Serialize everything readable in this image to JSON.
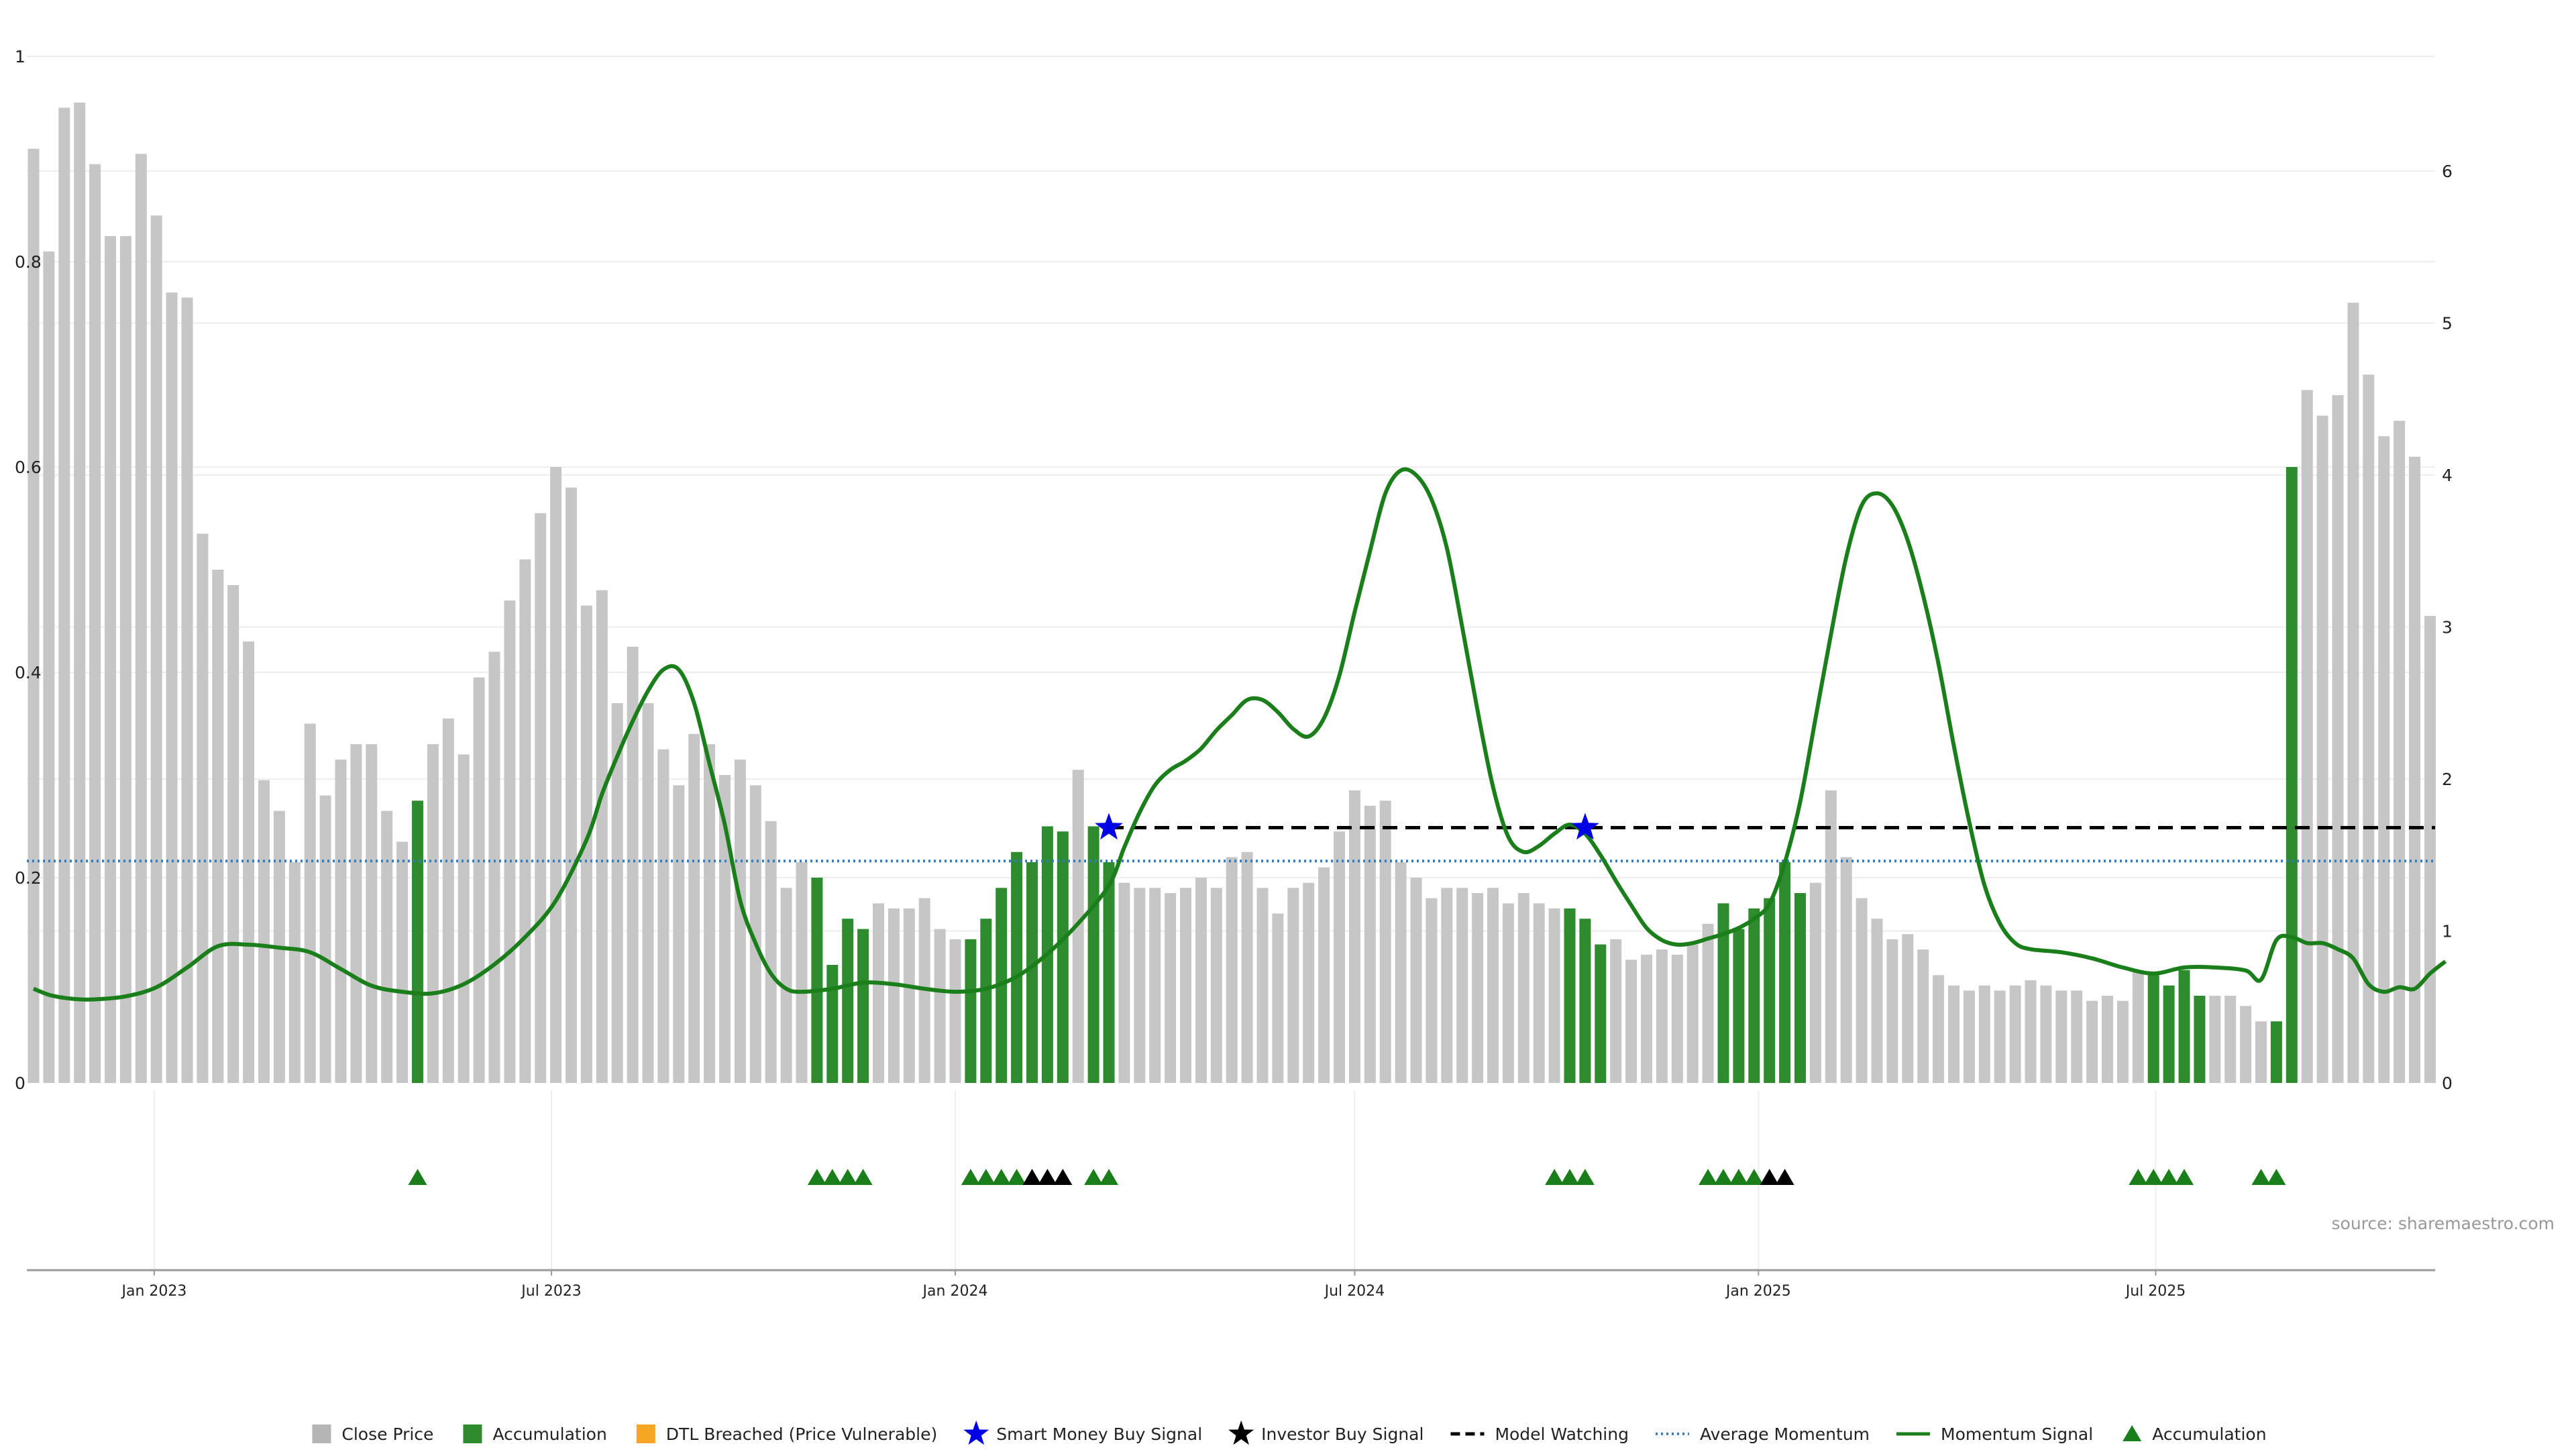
{
  "chart_data": {
    "type": "bar",
    "title": "",
    "source": "source: sharemaestro.com",
    "left_axis": {
      "ticks": [
        "0",
        "0.2",
        "0.4",
        "0.6",
        "0.8",
        "1"
      ],
      "ylim": [
        0,
        1.05
      ]
    },
    "right_axis": {
      "ticks": [
        "0",
        "1",
        "2",
        "3",
        "4",
        "5",
        "6"
      ],
      "ylim": [
        0,
        7.1
      ]
    },
    "x_axis": {
      "start": "2022-11-07",
      "interval": "weekly",
      "ticks": [
        "Jan 2023",
        "Jul 2023",
        "Jan 2024",
        "Jul 2024",
        "Jan 2025",
        "Jul 2025"
      ]
    },
    "bars": {
      "values": [
        0.91,
        0.81,
        0.95,
        0.955,
        0.895,
        0.825,
        0.825,
        0.905,
        0.845,
        0.77,
        0.765,
        0.535,
        0.5,
        0.485,
        0.43,
        0.295,
        0.265,
        0.215,
        0.35,
        0.28,
        0.315,
        0.33,
        0.33,
        0.265,
        0.235,
        0.275,
        0.33,
        0.355,
        0.32,
        0.395,
        0.42,
        0.47,
        0.51,
        0.555,
        0.6,
        0.58,
        0.465,
        0.48,
        0.37,
        0.425,
        0.37,
        0.325,
        0.29,
        0.34,
        0.33,
        0.3,
        0.315,
        0.29,
        0.255,
        0.19,
        0.215,
        0.2,
        0.115,
        0.16,
        0.15,
        0.175,
        0.17,
        0.17,
        0.18,
        0.15,
        0.14,
        0.14,
        0.16,
        0.19,
        0.225,
        0.215,
        0.25,
        0.245,
        0.305,
        0.25,
        0.215,
        0.195,
        0.19,
        0.19,
        0.185,
        0.19,
        0.2,
        0.19,
        0.22,
        0.225,
        0.19,
        0.165,
        0.19,
        0.195,
        0.21,
        0.245,
        0.285,
        0.27,
        0.275,
        0.215,
        0.2,
        0.18,
        0.19,
        0.19,
        0.185,
        0.19,
        0.175,
        0.185,
        0.175,
        0.17,
        0.17,
        0.16,
        0.135,
        0.14,
        0.12,
        0.125,
        0.13,
        0.125,
        0.135,
        0.155,
        0.175,
        0.15,
        0.17,
        0.18,
        0.215,
        0.185,
        0.195,
        0.285,
        0.22,
        0.18,
        0.16,
        0.14,
        0.145,
        0.13,
        0.105,
        0.095,
        0.09,
        0.095,
        0.09,
        0.095,
        0.1,
        0.095,
        0.09,
        0.09,
        0.08,
        0.085,
        0.08,
        0.11,
        0.105,
        0.095,
        0.11,
        0.085,
        0.085,
        0.085,
        0.075,
        0.06,
        0.06,
        0.6,
        0.675,
        0.65,
        0.67,
        0.76,
        0.69,
        0.63,
        0.645,
        0.61,
        0.455
      ],
      "accumulation_indices": [
        25,
        51,
        52,
        53,
        54,
        61,
        62,
        63,
        64,
        65,
        66,
        67,
        69,
        70,
        100,
        101,
        102,
        110,
        111,
        112,
        113,
        114,
        115,
        138,
        139,
        140,
        141,
        146,
        147
      ],
      "series": [
        {
          "name": "Close Price",
          "color": "#c6c6c6"
        },
        {
          "name": "Accumulation",
          "color": "#2e8b2e"
        }
      ]
    },
    "momentum_signal": {
      "name": "Momentum Signal",
      "axis": "right",
      "color": "#1a7f1a",
      "points": [
        [
          0,
          0.62
        ],
        [
          1,
          0.58
        ],
        [
          2,
          0.56
        ],
        [
          3,
          0.55
        ],
        [
          4,
          0.55
        ],
        [
          6,
          0.57
        ],
        [
          8,
          0.63
        ],
        [
          10,
          0.76
        ],
        [
          12,
          0.9
        ],
        [
          14,
          0.91
        ],
        [
          16,
          0.89
        ],
        [
          18,
          0.86
        ],
        [
          20,
          0.75
        ],
        [
          22,
          0.64
        ],
        [
          24,
          0.6
        ],
        [
          26,
          0.59
        ],
        [
          28,
          0.65
        ],
        [
          30,
          0.78
        ],
        [
          32,
          0.96
        ],
        [
          34,
          1.2
        ],
        [
          36,
          1.6
        ],
        [
          37,
          1.9
        ],
        [
          38,
          2.15
        ],
        [
          39,
          2.38
        ],
        [
          40,
          2.58
        ],
        [
          41,
          2.72
        ],
        [
          42,
          2.72
        ],
        [
          43,
          2.5
        ],
        [
          44,
          2.1
        ],
        [
          45,
          1.7
        ],
        [
          46,
          1.2
        ],
        [
          47,
          0.92
        ],
        [
          48,
          0.72
        ],
        [
          49,
          0.62
        ],
        [
          50,
          0.6
        ],
        [
          52,
          0.62
        ],
        [
          54,
          0.66
        ],
        [
          56,
          0.65
        ],
        [
          58,
          0.62
        ],
        [
          60,
          0.6
        ],
        [
          62,
          0.62
        ],
        [
          64,
          0.7
        ],
        [
          66,
          0.85
        ],
        [
          68,
          1.05
        ],
        [
          70,
          1.3
        ],
        [
          71,
          1.55
        ],
        [
          72,
          1.78
        ],
        [
          73,
          1.96
        ],
        [
          74,
          2.06
        ],
        [
          75,
          2.12
        ],
        [
          76,
          2.2
        ],
        [
          77,
          2.32
        ],
        [
          78,
          2.42
        ],
        [
          79,
          2.52
        ],
        [
          80,
          2.52
        ],
        [
          81,
          2.44
        ],
        [
          82,
          2.33
        ],
        [
          83,
          2.28
        ],
        [
          84,
          2.4
        ],
        [
          85,
          2.68
        ],
        [
          86,
          3.1
        ],
        [
          87,
          3.5
        ],
        [
          88,
          3.88
        ],
        [
          89,
          4.03
        ],
        [
          90,
          4.0
        ],
        [
          91,
          3.84
        ],
        [
          92,
          3.52
        ],
        [
          93,
          3.0
        ],
        [
          94,
          2.45
        ],
        [
          95,
          1.95
        ],
        [
          96,
          1.62
        ],
        [
          97,
          1.52
        ],
        [
          98,
          1.56
        ],
        [
          99,
          1.64
        ],
        [
          100,
          1.7
        ],
        [
          101,
          1.64
        ],
        [
          102,
          1.5
        ],
        [
          103,
          1.33
        ],
        [
          104,
          1.17
        ],
        [
          105,
          1.02
        ],
        [
          106,
          0.94
        ],
        [
          107,
          0.91
        ],
        [
          108,
          0.92
        ],
        [
          109,
          0.95
        ],
        [
          110,
          0.98
        ],
        [
          111,
          1.02
        ],
        [
          112,
          1.08
        ],
        [
          113,
          1.18
        ],
        [
          114,
          1.45
        ],
        [
          115,
          1.85
        ],
        [
          116,
          2.4
        ],
        [
          117,
          2.95
        ],
        [
          118,
          3.46
        ],
        [
          119,
          3.8
        ],
        [
          120,
          3.88
        ],
        [
          121,
          3.8
        ],
        [
          122,
          3.57
        ],
        [
          123,
          3.21
        ],
        [
          124,
          2.76
        ],
        [
          125,
          2.22
        ],
        [
          126,
          1.72
        ],
        [
          127,
          1.3
        ],
        [
          128,
          1.05
        ],
        [
          129,
          0.92
        ],
        [
          130,
          0.88
        ],
        [
          132,
          0.86
        ],
        [
          134,
          0.82
        ],
        [
          136,
          0.76
        ],
        [
          138,
          0.72
        ],
        [
          140,
          0.76
        ],
        [
          142,
          0.76
        ],
        [
          144,
          0.74
        ],
        [
          145,
          0.68
        ],
        [
          146,
          0.94
        ],
        [
          147,
          0.96
        ],
        [
          148,
          0.92
        ],
        [
          149,
          0.92
        ],
        [
          150,
          0.88
        ],
        [
          151,
          0.82
        ],
        [
          152,
          0.65
        ],
        [
          153,
          0.6
        ],
        [
          154,
          0.63
        ],
        [
          155,
          0.62
        ],
        [
          156,
          0.72
        ],
        [
          157,
          0.8
        ]
      ]
    },
    "average_momentum": {
      "name": "Average Momentum",
      "axis": "right",
      "value": 1.46,
      "color": "#3a7ab5"
    },
    "model_watching": {
      "name": "Model Watching",
      "axis": "right",
      "value": 1.68,
      "start_index": 70,
      "color": "#000000"
    },
    "smart_money_buy_signals": {
      "name": "Smart Money Buy Signal",
      "color": "#0000e6",
      "indices": [
        70,
        101
      ],
      "value": 1.68
    },
    "signal_markers": [
      {
        "index": 25,
        "kind": "Accumulation"
      },
      {
        "index": 51,
        "kind": "Accumulation"
      },
      {
        "index": 52,
        "kind": "Accumulation"
      },
      {
        "index": 53,
        "kind": "Accumulation"
      },
      {
        "index": 54,
        "kind": "Accumulation"
      },
      {
        "index": 61,
        "kind": "Accumulation"
      },
      {
        "index": 62,
        "kind": "Accumulation"
      },
      {
        "index": 63,
        "kind": "Accumulation"
      },
      {
        "index": 64,
        "kind": "Accumulation"
      },
      {
        "index": 65,
        "kind": "Investor"
      },
      {
        "index": 66,
        "kind": "Investor"
      },
      {
        "index": 67,
        "kind": "Investor"
      },
      {
        "index": 69,
        "kind": "Accumulation"
      },
      {
        "index": 70,
        "kind": "Accumulation"
      },
      {
        "index": 99,
        "kind": "Accumulation"
      },
      {
        "index": 100,
        "kind": "Accumulation"
      },
      {
        "index": 101,
        "kind": "Accumulation"
      },
      {
        "index": 109,
        "kind": "Accumulation"
      },
      {
        "index": 110,
        "kind": "Accumulation"
      },
      {
        "index": 111,
        "kind": "Accumulation"
      },
      {
        "index": 112,
        "kind": "Accumulation"
      },
      {
        "index": 113,
        "kind": "Investor"
      },
      {
        "index": 114,
        "kind": "Investor"
      },
      {
        "index": 137,
        "kind": "Accumulation"
      },
      {
        "index": 138,
        "kind": "Accumulation"
      },
      {
        "index": 139,
        "kind": "Accumulation"
      },
      {
        "index": 140,
        "kind": "Accumulation"
      },
      {
        "index": 145,
        "kind": "Accumulation"
      },
      {
        "index": 146,
        "kind": "Accumulation"
      }
    ],
    "marker_colors": {
      "Accumulation": "#1a7f1a",
      "Investor": "#000000"
    },
    "legend": {
      "placement": "bottom-center",
      "items": [
        {
          "label": "Close Price",
          "symbol": "square",
          "color": "#b5b5b5"
        },
        {
          "label": "Accumulation",
          "symbol": "square",
          "color": "#2e8b2e"
        },
        {
          "label": "DTL Breached (Price Vulnerable)",
          "symbol": "square",
          "color": "#f5a623"
        },
        {
          "label": "Smart Money Buy Signal",
          "symbol": "star",
          "color": "#0000e6"
        },
        {
          "label": "Investor Buy Signal",
          "symbol": "star",
          "color": "#000000"
        },
        {
          "label": "Model Watching",
          "symbol": "dashed",
          "color": "#000000"
        },
        {
          "label": "Average Momentum",
          "symbol": "dotted",
          "color": "#3a7ab5"
        },
        {
          "label": "Momentum Signal",
          "symbol": "line",
          "color": "#1a7f1a"
        },
        {
          "label": "Accumulation",
          "symbol": "triangle",
          "color": "#1a7f1a"
        }
      ]
    },
    "grid": true
  }
}
